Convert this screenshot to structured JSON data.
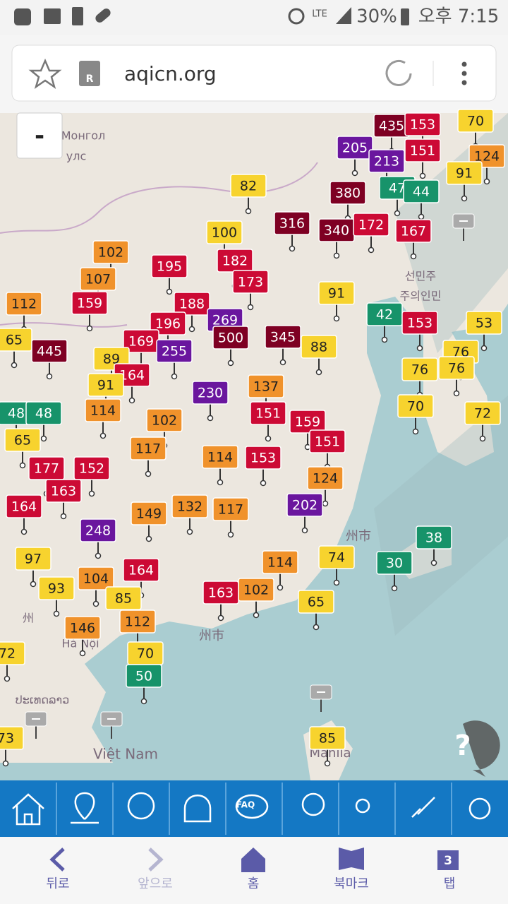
{
  "status_bar": {
    "network": "LTE",
    "battery": "30%",
    "time": "오후 7:15"
  },
  "browser": {
    "url": "aqicn.org"
  },
  "map": {
    "zoom_out": "-",
    "help": "?",
    "labels": [
      "Монгол",
      "улс",
      "선민주",
      "주의인민",
      "州市",
      "州",
      "州市",
      "Hà Nội",
      "ປະເທດລາວ",
      "Việt Nam",
      "Manila"
    ],
    "markers": [
      70,
      435,
      153,
      205,
      213,
      151,
      124,
      91,
      82,
      380,
      47,
      44,
      316,
      340,
      172,
      167,
      100,
      102,
      182,
      195,
      173,
      107,
      159,
      91,
      188,
      269,
      42,
      153,
      53,
      112,
      65,
      445,
      196,
      500,
      345,
      88,
      169,
      255,
      89,
      76,
      76,
      76,
      164,
      91,
      230,
      137,
      48,
      48,
      114,
      151,
      70,
      72,
      102,
      159,
      151,
      65,
      117,
      114,
      153,
      177,
      152,
      163,
      124,
      164,
      149,
      132,
      117,
      202,
      248,
      38,
      97,
      74,
      114,
      30,
      104,
      164,
      163,
      102,
      93,
      85,
      65,
      146,
      112,
      72,
      70,
      85,
      73,
      50
    ]
  },
  "toolbar": {
    "faq": "FAQ"
  },
  "nav": {
    "back": "뒤로",
    "forward": "앞으로",
    "home": "홈",
    "bookmarks": "북마크",
    "tabs": "탭",
    "tab_count": "3"
  }
}
